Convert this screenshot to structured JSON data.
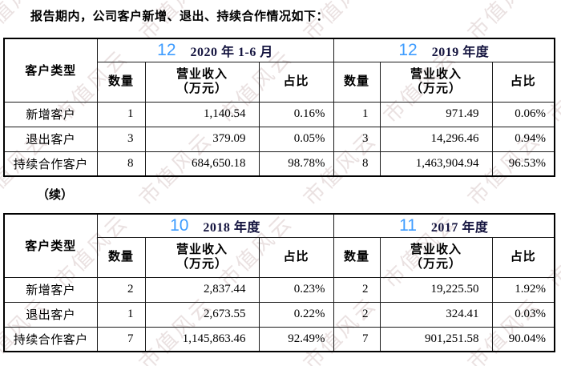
{
  "intro": "报告期内，公司客户新增、退出、持续合作情况如下：",
  "continued_label": "（续）",
  "watermark": {
    "text": "市值风云",
    "color": "#d9c9c9"
  },
  "colors": {
    "badge_blue": "#3e9cff",
    "year_navy": "#14143f",
    "border": "#1a1a1a"
  },
  "column_headers": {
    "row_header": "客户类型",
    "qty": "数量",
    "rev_line1": "营业收入",
    "rev_line2": "（万元）",
    "ratio": "占比"
  },
  "tables": [
    {
      "periods": [
        {
          "badge": "12",
          "title": "2020 年 1-6 月"
        },
        {
          "badge": "12",
          "title": "2019 年度"
        }
      ],
      "rows": [
        {
          "label": "新增客户",
          "cells": [
            [
              "1",
              "1,140.54",
              "0.16%"
            ],
            [
              "1",
              "971.49",
              "0.06%"
            ]
          ]
        },
        {
          "label": "退出客户",
          "cells": [
            [
              "3",
              "379.09",
              "0.05%"
            ],
            [
              "3",
              "14,296.46",
              "0.94%"
            ]
          ]
        },
        {
          "label": "持续合作客户",
          "cells": [
            [
              "8",
              "684,650.18",
              "98.78%"
            ],
            [
              "8",
              "1,463,904.94",
              "96.53%"
            ]
          ]
        }
      ]
    },
    {
      "periods": [
        {
          "badge": "10",
          "title": "2018 年度"
        },
        {
          "badge": "11",
          "title": "2017 年度"
        }
      ],
      "rows": [
        {
          "label": "新增客户",
          "cells": [
            [
              "2",
              "2,837.44",
              "0.23%"
            ],
            [
              "2",
              "19,225.50",
              "1.92%"
            ]
          ]
        },
        {
          "label": "退出客户",
          "cells": [
            [
              "1",
              "2,673.55",
              "0.22%"
            ],
            [
              "2",
              "324.41",
              "0.03%"
            ]
          ]
        },
        {
          "label": "持续合作客户",
          "cells": [
            [
              "7",
              "1,145,863.46",
              "92.49%"
            ],
            [
              "7",
              "901,251.58",
              "90.04%"
            ]
          ]
        }
      ]
    }
  ]
}
